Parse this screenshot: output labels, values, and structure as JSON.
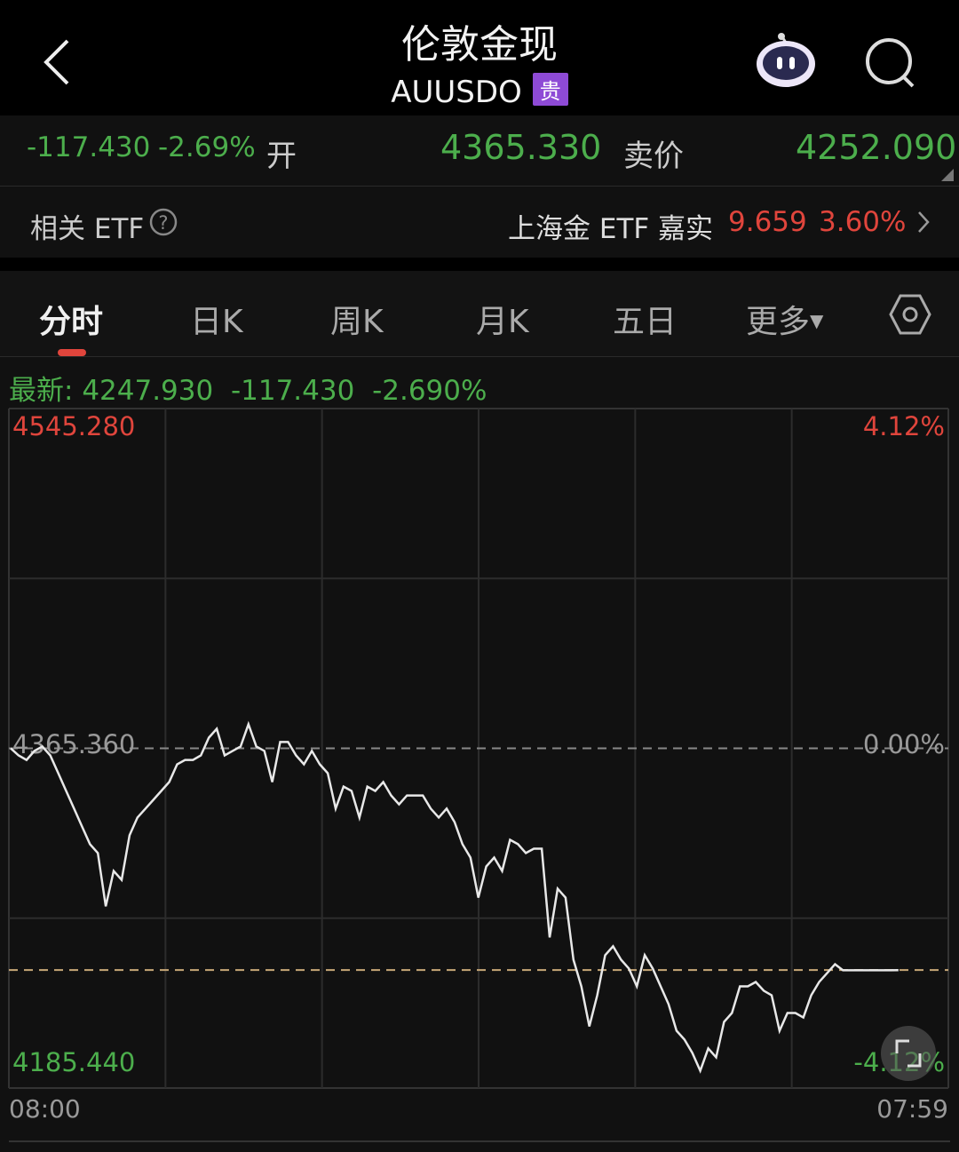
{
  "header": {
    "title": "伦敦金现",
    "code": "AUUSDO",
    "badge": "贵",
    "icons": [
      "back-chevron-icon",
      "robot-assistant-icon",
      "search-icon"
    ]
  },
  "quote_row": {
    "change": "-117.430",
    "change_pct": "-2.69%",
    "open_label": "开",
    "open_value": "4365.330",
    "bid_label": "卖价",
    "bid_value": "4252.090"
  },
  "etf_row": {
    "label": "相关 ETF",
    "etf_name": "上海金 ETF 嘉实",
    "etf_price": "9.659",
    "etf_change_pct": "3.60%"
  },
  "tabs": [
    {
      "label": "分时",
      "active": true
    },
    {
      "label": "日K"
    },
    {
      "label": "周K"
    },
    {
      "label": "月K"
    },
    {
      "label": "五日"
    },
    {
      "label": "更多"
    }
  ],
  "latest": {
    "label": "最新:",
    "price": "4247.930",
    "change": "-117.430",
    "change_pct": "-2.690%"
  },
  "colors": {
    "up": "#e0453c",
    "down": "#4cae4c",
    "line": "#e8e8e8",
    "accent": "#e0453c",
    "badge": "#8e4ad6"
  },
  "chart_data": {
    "type": "line",
    "y_labels": {
      "top": "4545.280",
      "mid": "4365.360",
      "bottom": "4185.440"
    },
    "pct_labels": {
      "top": "4.12%",
      "mid": "0.00%",
      "bottom": "-4.12%"
    },
    "ylim": [
      4185.44,
      4545.28
    ],
    "reference": 4365.36,
    "latest_line": 4247.93,
    "x_labels": {
      "start": "08:00",
      "end": "07:59"
    },
    "grid": true,
    "values": [
      4365.4,
      4361.6,
      4359.2,
      4364.0,
      4366.3,
      4361.6,
      4352.2,
      4342.8,
      4333.4,
      4324.0,
      4314.6,
      4309.9,
      4281.7,
      4300.4,
      4295.7,
      4319.3,
      4328.7,
      4333.4,
      4338.1,
      4342.8,
      4347.5,
      4356.9,
      4359.2,
      4359.2,
      4361.6,
      4371.0,
      4375.7,
      4361.6,
      4364.0,
      4366.3,
      4378.1,
      4366.3,
      4364.0,
      4347.5,
      4368.7,
      4368.7,
      4361.6,
      4356.9,
      4364.0,
      4356.9,
      4352.2,
      4333.4,
      4345.1,
      4342.8,
      4328.7,
      4345.1,
      4342.8,
      4347.5,
      4340.4,
      4335.7,
      4340.4,
      4340.4,
      4340.4,
      4333.4,
      4328.7,
      4333.4,
      4326.3,
      4314.6,
      4307.5,
      4286.3,
      4302.8,
      4307.5,
      4300.4,
      4316.9,
      4314.6,
      4309.9,
      4312.2,
      4312.2,
      4265.2,
      4291.0,
      4286.3,
      4253.4,
      4239.3,
      4218.1,
      4234.6,
      4255.8,
      4260.5,
      4253.4,
      4248.7,
      4239.3,
      4255.8,
      4248.7,
      4239.3,
      4229.9,
      4215.8,
      4211.1,
      4204.0,
      4194.6,
      4206.4,
      4201.7,
      4220.5,
      4225.2,
      4239.3,
      4239.3,
      4241.6,
      4237.0,
      4234.6,
      4215.8,
      4225.2,
      4225.2,
      4222.8,
      4234.6,
      4241.6,
      4246.3,
      4251.0,
      4247.8,
      4247.8,
      4247.8,
      4247.8,
      4247.8,
      4247.8,
      4247.8,
      4247.9
    ]
  }
}
